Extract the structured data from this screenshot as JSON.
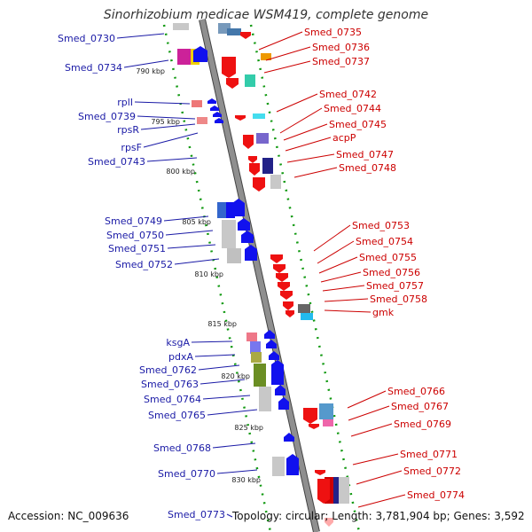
{
  "title": "Sinorhizobium medicae WSM419, complete genome",
  "footer": {
    "accession": "Accession: NC_009636",
    "summary": "Topology: circular; Length: 3,781,904 bp; Genes: 3,592"
  },
  "colors": {
    "backbone": "#8f8f8f",
    "backbone_edge": "#444444",
    "guide": "#119911",
    "leader_left": "#1a1aa6",
    "leader_right": "#cc0000"
  },
  "ticks": [
    {
      "label": "790 kbp",
      "pos": 790
    },
    {
      "label": "795 kbp",
      "pos": 795
    },
    {
      "label": "800 kbp",
      "pos": 800
    },
    {
      "label": "805 kbp",
      "pos": 805
    },
    {
      "label": "810 kbp",
      "pos": 810
    },
    {
      "label": "815 kbp",
      "pos": 815
    },
    {
      "label": "820 kbp",
      "pos": 820
    },
    {
      "label": "825 kbp",
      "pos": 825
    },
    {
      "label": "830 kbp",
      "pos": 830
    }
  ],
  "left_labels": [
    "Smed_0730",
    "Smed_0734",
    "rplI",
    "Smed_0739",
    "rpsR",
    "rpsF",
    "Smed_0743",
    "Smed_0749",
    "Smed_0750",
    "Smed_0751",
    "Smed_0752",
    "ksgA",
    "pdxA",
    "Smed_0762",
    "Smed_0763",
    "Smed_0764",
    "Smed_0765",
    "Smed_0768",
    "Smed_0770",
    "Smed_0773"
  ],
  "right_labels": [
    "Smed_0735",
    "Smed_0736",
    "Smed_0737",
    "Smed_0742",
    "Smed_0744",
    "Smed_0745",
    "acpP",
    "Smed_0747",
    "Smed_0748",
    "Smed_0753",
    "Smed_0754",
    "Smed_0755",
    "Smed_0756",
    "Smed_0757",
    "Smed_0758",
    "gmk",
    "Smed_0766",
    "Smed_0767",
    "Smed_0769",
    "Smed_0771",
    "Smed_0772",
    "Smed_0774"
  ]
}
